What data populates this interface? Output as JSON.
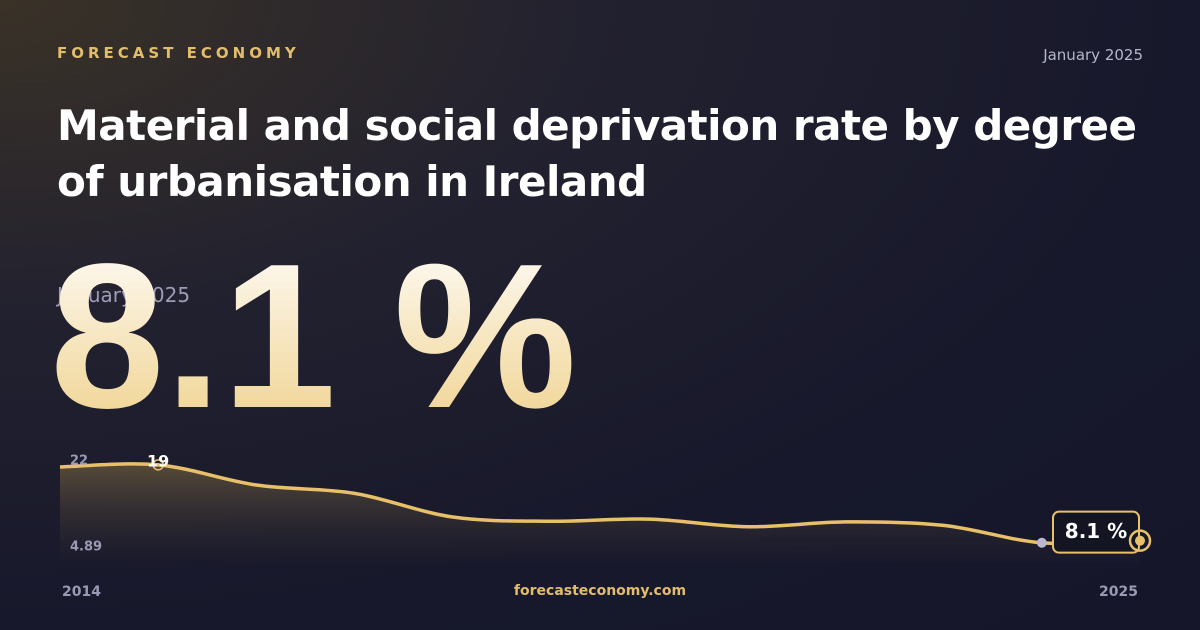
{
  "brand": "FORECAST ECONOMY",
  "date": "January 2025",
  "footer": "forecasteconomy.com",
  "chart_data": {
    "type": "area",
    "title": "Material and social deprivation rate by degree of urbanisation in Ireland",
    "x": [
      2014,
      2015,
      2016,
      2017,
      2018,
      2019,
      2020,
      2021,
      2022,
      2023,
      2024,
      2025
    ],
    "values": [
      18.7,
      19,
      16.1,
      14.9,
      11.5,
      10.9,
      11.2,
      10.1,
      10.8,
      10.3,
      7.8,
      8.1
    ],
    "value_labels": [
      null,
      "19",
      null,
      null,
      null,
      null,
      null,
      null,
      null,
      null,
      null,
      "8.1 %"
    ],
    "color": "#e8c06a",
    "xlim": [
      2014,
      2025
    ],
    "xticks": [
      2014,
      2025
    ],
    "ylim": [
      4.89,
      22
    ],
    "yticks": [
      4.89,
      22
    ]
  }
}
